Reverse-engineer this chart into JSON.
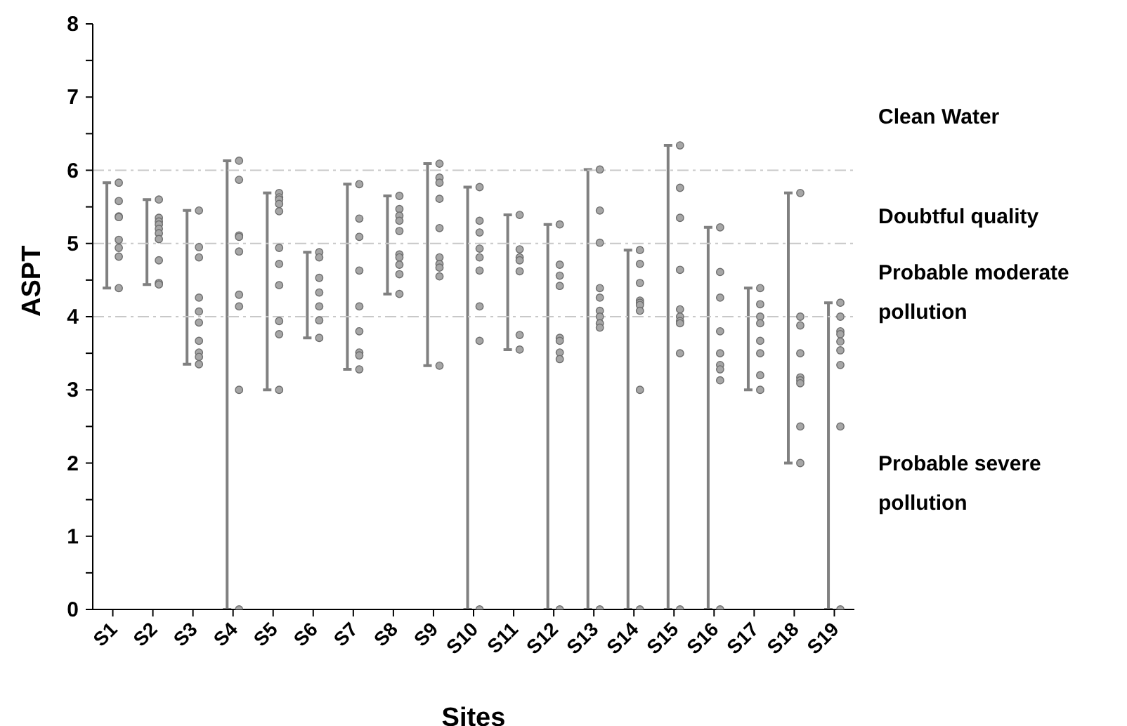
{
  "chart_data": {
    "type": "bar",
    "xlabel": "Sites",
    "ylabel": "ASPT",
    "categories": [
      "S1",
      "S2",
      "S3",
      "S4",
      "S5",
      "S6",
      "S7",
      "S8",
      "S9",
      "S10",
      "S11",
      "S12",
      "S13",
      "S14",
      "S15",
      "S16",
      "S17",
      "S18",
      "S19"
    ],
    "ylim": [
      0,
      8
    ],
    "yticks": [
      0,
      {
        "value": 0.5,
        "label": null
      },
      1,
      {
        "value": 1.5,
        "label": null
      },
      2,
      {
        "value": 2.5,
        "label": null
      },
      3,
      {
        "value": 3.5,
        "label": null
      },
      4,
      {
        "value": 4.5,
        "label": null
      },
      5,
      {
        "value": 5.5,
        "label": null
      },
      6,
      {
        "value": 6.5,
        "label": null
      },
      7,
      {
        "value": 7.5,
        "label": null
      },
      8
    ],
    "series": [
      {
        "type": "bar",
        "color": "#808080",
        "base": [
          4.39,
          4.44,
          3.35,
          0,
          3.0,
          3.71,
          3.28,
          4.31,
          3.33,
          0,
          3.55,
          0,
          0,
          0,
          0,
          0,
          3.0,
          2.0,
          0
        ],
        "values": [
          1.44,
          1.16,
          2.1,
          6.13,
          2.69,
          1.17,
          2.53,
          1.34,
          2.76,
          5.77,
          1.84,
          5.26,
          6.01,
          4.91,
          6.34,
          5.22,
          1.39,
          3.69,
          4.19
        ]
      },
      {
        "type": "scatter",
        "color": "#a6a6a6",
        "marker": "circle",
        "x": [
          "S1",
          "S1",
          "S1",
          "S1",
          "S1",
          "S1",
          "S1",
          "S1",
          "S2",
          "S2",
          "S2",
          "S2",
          "S2",
          "S2",
          "S2",
          "S2",
          "S2",
          "S2",
          "S3",
          "S3",
          "S3",
          "S3",
          "S3",
          "S3",
          "S3",
          "S3",
          "S3",
          "S3",
          "S4",
          "S4",
          "S4",
          "S4",
          "S4",
          "S4",
          "S4",
          "S4",
          "S4",
          "S5",
          "S5",
          "S5",
          "S5",
          "S5",
          "S5",
          "S5",
          "S5",
          "S5",
          "S5",
          "S5",
          "S6",
          "S6",
          "S6",
          "S6",
          "S6",
          "S6",
          "S6",
          "S7",
          "S7",
          "S7",
          "S7",
          "S7",
          "S7",
          "S7",
          "S7",
          "S7",
          "S8",
          "S8",
          "S8",
          "S8",
          "S8",
          "S8",
          "S8",
          "S8",
          "S8",
          "S8",
          "S9",
          "S9",
          "S9",
          "S9",
          "S9",
          "S9",
          "S9",
          "S9",
          "S9",
          "S9",
          "S10",
          "S10",
          "S10",
          "S10",
          "S10",
          "S10",
          "S10",
          "S10",
          "S10",
          "S11",
          "S11",
          "S11",
          "S11",
          "S11",
          "S11",
          "S11",
          "S12",
          "S12",
          "S12",
          "S12",
          "S12",
          "S12",
          "S12",
          "S12",
          "S12",
          "S13",
          "S13",
          "S13",
          "S13",
          "S13",
          "S13",
          "S13",
          "S13",
          "S13",
          "S13",
          "S14",
          "S14",
          "S14",
          "S14",
          "S14",
          "S14",
          "S14",
          "S14",
          "S14",
          "S15",
          "S15",
          "S15",
          "S15",
          "S15",
          "S15",
          "S15",
          "S15",
          "S15",
          "S15",
          "S16",
          "S16",
          "S16",
          "S16",
          "S16",
          "S16",
          "S16",
          "S16",
          "S16",
          "S17",
          "S17",
          "S17",
          "S17",
          "S17",
          "S17",
          "S17",
          "S17",
          "S18",
          "S18",
          "S18",
          "S18",
          "S18",
          "S18",
          "S18",
          "S18",
          "S18",
          "S19",
          "S19",
          "S19",
          "S19",
          "S19",
          "S19",
          "S19",
          "S19",
          "S19"
        ],
        "values": [
          5.83,
          5.58,
          5.37,
          5.36,
          5.05,
          4.94,
          4.82,
          4.39,
          5.6,
          5.35,
          5.3,
          5.26,
          5.2,
          5.14,
          5.06,
          4.77,
          4.46,
          4.44,
          5.45,
          4.95,
          4.81,
          4.26,
          4.07,
          3.92,
          3.67,
          3.51,
          3.45,
          3.35,
          6.13,
          5.87,
          5.11,
          5.09,
          4.89,
          4.3,
          4.14,
          3.0,
          0,
          5.69,
          5.63,
          5.6,
          5.54,
          5.44,
          4.94,
          4.72,
          4.43,
          3.94,
          3.76,
          3.0,
          4.88,
          4.81,
          4.53,
          4.33,
          4.14,
          3.95,
          3.71,
          5.81,
          5.34,
          5.09,
          4.63,
          4.14,
          3.8,
          3.51,
          3.47,
          3.28,
          5.65,
          5.47,
          5.38,
          5.31,
          5.17,
          4.85,
          4.81,
          4.71,
          4.58,
          4.31,
          6.09,
          5.9,
          5.83,
          5.61,
          5.21,
          4.81,
          4.72,
          4.67,
          4.55,
          3.33,
          5.77,
          5.31,
          5.15,
          4.93,
          4.81,
          4.63,
          4.14,
          3.67,
          0,
          5.39,
          4.92,
          4.81,
          4.77,
          4.62,
          3.75,
          3.55,
          5.26,
          4.71,
          4.56,
          4.42,
          3.71,
          3.67,
          3.51,
          3.42,
          0,
          6.01,
          5.45,
          5.01,
          4.39,
          4.26,
          4.08,
          4.0,
          3.91,
          3.85,
          0,
          4.91,
          4.72,
          4.46,
          4.22,
          4.19,
          4.16,
          4.08,
          3.0,
          0,
          6.34,
          5.76,
          5.35,
          4.64,
          4.1,
          4.0,
          3.94,
          3.91,
          3.5,
          0,
          5.22,
          4.61,
          4.26,
          3.8,
          3.5,
          3.34,
          3.28,
          3.13,
          0,
          4.39,
          4.17,
          4.0,
          3.91,
          3.67,
          3.5,
          3.2,
          3.0,
          5.69,
          4.0,
          3.88,
          3.5,
          3.17,
          3.13,
          3.09,
          2.5,
          2.0,
          4.19,
          4.0,
          3.8,
          3.76,
          3.66,
          3.54,
          3.34,
          2.5,
          0
        ]
      }
    ],
    "ref_lines": [
      {
        "axis": "y",
        "value": 6,
        "color": "#c8c8c8",
        "line_style": "dashdot"
      },
      {
        "axis": "y",
        "value": 5,
        "color": "#c8c8c8",
        "line_style": "dashdot"
      },
      {
        "axis": "y",
        "value": 4,
        "color": "#c8c8c8",
        "line_style": "dashdot"
      }
    ],
    "annotations": [
      "Clean Water",
      "Doubtful quality",
      "Probable moderate pollution",
      "Probable severe pollution"
    ]
  }
}
